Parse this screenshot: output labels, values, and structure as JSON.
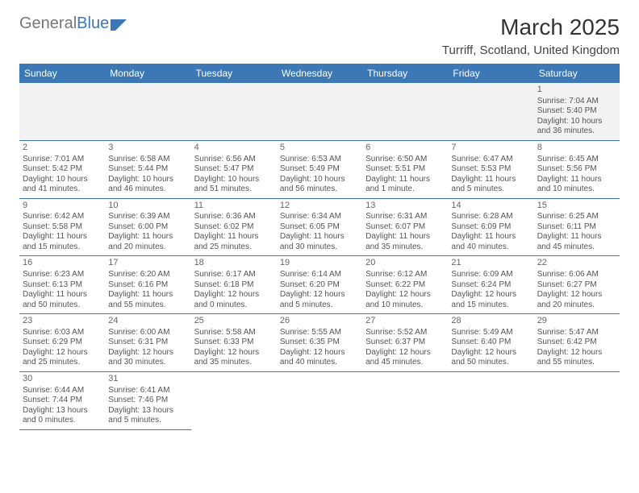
{
  "logo": {
    "part1": "General",
    "part2": "Blue"
  },
  "title": "March 2025",
  "location": "Turriff, Scotland, United Kingdom",
  "colors": {
    "header_bg": "#3b78b5",
    "header_text": "#ffffff",
    "border": "#3b78b5",
    "text": "#555555"
  },
  "daysOfWeek": [
    "Sunday",
    "Monday",
    "Tuesday",
    "Wednesday",
    "Thursday",
    "Friday",
    "Saturday"
  ],
  "weeks": [
    [
      null,
      null,
      null,
      null,
      null,
      null,
      {
        "n": "1",
        "sr": "Sunrise: 7:04 AM",
        "ss": "Sunset: 5:40 PM",
        "dl": "Daylight: 10 hours and 36 minutes."
      }
    ],
    [
      {
        "n": "2",
        "sr": "Sunrise: 7:01 AM",
        "ss": "Sunset: 5:42 PM",
        "dl": "Daylight: 10 hours and 41 minutes."
      },
      {
        "n": "3",
        "sr": "Sunrise: 6:58 AM",
        "ss": "Sunset: 5:44 PM",
        "dl": "Daylight: 10 hours and 46 minutes."
      },
      {
        "n": "4",
        "sr": "Sunrise: 6:56 AM",
        "ss": "Sunset: 5:47 PM",
        "dl": "Daylight: 10 hours and 51 minutes."
      },
      {
        "n": "5",
        "sr": "Sunrise: 6:53 AM",
        "ss": "Sunset: 5:49 PM",
        "dl": "Daylight: 10 hours and 56 minutes."
      },
      {
        "n": "6",
        "sr": "Sunrise: 6:50 AM",
        "ss": "Sunset: 5:51 PM",
        "dl": "Daylight: 11 hours and 1 minute."
      },
      {
        "n": "7",
        "sr": "Sunrise: 6:47 AM",
        "ss": "Sunset: 5:53 PM",
        "dl": "Daylight: 11 hours and 5 minutes."
      },
      {
        "n": "8",
        "sr": "Sunrise: 6:45 AM",
        "ss": "Sunset: 5:56 PM",
        "dl": "Daylight: 11 hours and 10 minutes."
      }
    ],
    [
      {
        "n": "9",
        "sr": "Sunrise: 6:42 AM",
        "ss": "Sunset: 5:58 PM",
        "dl": "Daylight: 11 hours and 15 minutes."
      },
      {
        "n": "10",
        "sr": "Sunrise: 6:39 AM",
        "ss": "Sunset: 6:00 PM",
        "dl": "Daylight: 11 hours and 20 minutes."
      },
      {
        "n": "11",
        "sr": "Sunrise: 6:36 AM",
        "ss": "Sunset: 6:02 PM",
        "dl": "Daylight: 11 hours and 25 minutes."
      },
      {
        "n": "12",
        "sr": "Sunrise: 6:34 AM",
        "ss": "Sunset: 6:05 PM",
        "dl": "Daylight: 11 hours and 30 minutes."
      },
      {
        "n": "13",
        "sr": "Sunrise: 6:31 AM",
        "ss": "Sunset: 6:07 PM",
        "dl": "Daylight: 11 hours and 35 minutes."
      },
      {
        "n": "14",
        "sr": "Sunrise: 6:28 AM",
        "ss": "Sunset: 6:09 PM",
        "dl": "Daylight: 11 hours and 40 minutes."
      },
      {
        "n": "15",
        "sr": "Sunrise: 6:25 AM",
        "ss": "Sunset: 6:11 PM",
        "dl": "Daylight: 11 hours and 45 minutes."
      }
    ],
    [
      {
        "n": "16",
        "sr": "Sunrise: 6:23 AM",
        "ss": "Sunset: 6:13 PM",
        "dl": "Daylight: 11 hours and 50 minutes."
      },
      {
        "n": "17",
        "sr": "Sunrise: 6:20 AM",
        "ss": "Sunset: 6:16 PM",
        "dl": "Daylight: 11 hours and 55 minutes."
      },
      {
        "n": "18",
        "sr": "Sunrise: 6:17 AM",
        "ss": "Sunset: 6:18 PM",
        "dl": "Daylight: 12 hours and 0 minutes."
      },
      {
        "n": "19",
        "sr": "Sunrise: 6:14 AM",
        "ss": "Sunset: 6:20 PM",
        "dl": "Daylight: 12 hours and 5 minutes."
      },
      {
        "n": "20",
        "sr": "Sunrise: 6:12 AM",
        "ss": "Sunset: 6:22 PM",
        "dl": "Daylight: 12 hours and 10 minutes."
      },
      {
        "n": "21",
        "sr": "Sunrise: 6:09 AM",
        "ss": "Sunset: 6:24 PM",
        "dl": "Daylight: 12 hours and 15 minutes."
      },
      {
        "n": "22",
        "sr": "Sunrise: 6:06 AM",
        "ss": "Sunset: 6:27 PM",
        "dl": "Daylight: 12 hours and 20 minutes."
      }
    ],
    [
      {
        "n": "23",
        "sr": "Sunrise: 6:03 AM",
        "ss": "Sunset: 6:29 PM",
        "dl": "Daylight: 12 hours and 25 minutes."
      },
      {
        "n": "24",
        "sr": "Sunrise: 6:00 AM",
        "ss": "Sunset: 6:31 PM",
        "dl": "Daylight: 12 hours and 30 minutes."
      },
      {
        "n": "25",
        "sr": "Sunrise: 5:58 AM",
        "ss": "Sunset: 6:33 PM",
        "dl": "Daylight: 12 hours and 35 minutes."
      },
      {
        "n": "26",
        "sr": "Sunrise: 5:55 AM",
        "ss": "Sunset: 6:35 PM",
        "dl": "Daylight: 12 hours and 40 minutes."
      },
      {
        "n": "27",
        "sr": "Sunrise: 5:52 AM",
        "ss": "Sunset: 6:37 PM",
        "dl": "Daylight: 12 hours and 45 minutes."
      },
      {
        "n": "28",
        "sr": "Sunrise: 5:49 AM",
        "ss": "Sunset: 6:40 PM",
        "dl": "Daylight: 12 hours and 50 minutes."
      },
      {
        "n": "29",
        "sr": "Sunrise: 5:47 AM",
        "ss": "Sunset: 6:42 PM",
        "dl": "Daylight: 12 hours and 55 minutes."
      }
    ],
    [
      {
        "n": "30",
        "sr": "Sunrise: 6:44 AM",
        "ss": "Sunset: 7:44 PM",
        "dl": "Daylight: 13 hours and 0 minutes."
      },
      {
        "n": "31",
        "sr": "Sunrise: 6:41 AM",
        "ss": "Sunset: 7:46 PM",
        "dl": "Daylight: 13 hours and 5 minutes."
      },
      null,
      null,
      null,
      null,
      null
    ]
  ]
}
